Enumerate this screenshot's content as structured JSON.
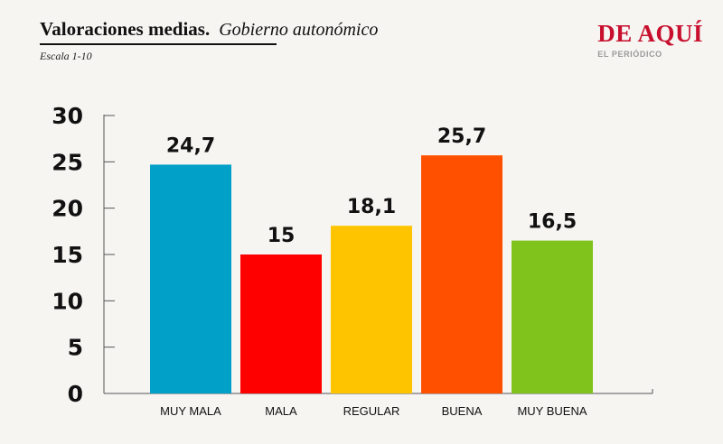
{
  "header": {
    "title": "Valoraciones medias.",
    "subtitle": "Gobierno autonómico",
    "scale_note": "Escala 1-10"
  },
  "brand": {
    "name": "DE AQUÍ",
    "tagline": "EL PERIÓDICO",
    "color": "#c8102e"
  },
  "chart_data": {
    "type": "bar",
    "categories": [
      "MUY MALA",
      "MALA",
      "REGULAR",
      "BUENA",
      "MUY BUENA"
    ],
    "values": [
      24.7,
      15,
      18.1,
      25.7,
      16.5
    ],
    "value_labels": [
      "24,7",
      "15",
      "18,1",
      "25,7",
      "16,5"
    ],
    "colors": [
      "#00a0c8",
      "#ff0000",
      "#ffc400",
      "#ff5000",
      "#7fc31c"
    ],
    "ylim": [
      0,
      30
    ],
    "yticks": [
      0,
      5,
      10,
      15,
      20,
      25,
      30
    ],
    "grid": false
  }
}
